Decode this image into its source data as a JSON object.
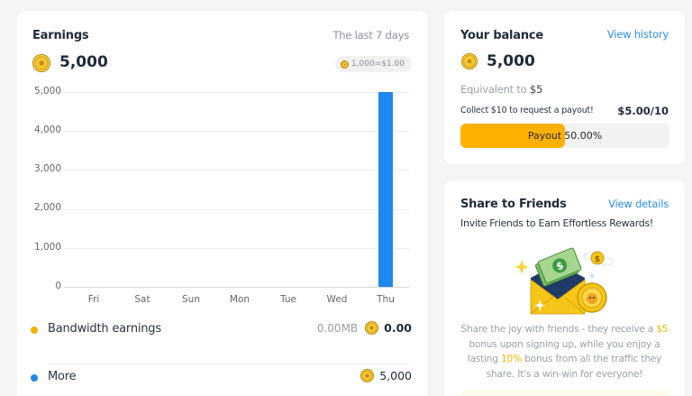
{
  "earnings": {
    "title": "Earnings",
    "period": "The last 7 days",
    "total": "5,000",
    "rate": "1,000=$1.00",
    "legend": [
      {
        "label": "Bandwidth earnings",
        "usage": "0.00MB",
        "value": "0.00",
        "color": "#f5b000"
      },
      {
        "label": "More",
        "usage": "",
        "value": "5,000",
        "color": "#1e88f0"
      }
    ]
  },
  "chart_data": {
    "type": "bar",
    "title": "Earnings",
    "categories": [
      "Fri",
      "Sat",
      "Sun",
      "Mon",
      "Tue",
      "Wed",
      "Thu"
    ],
    "values": [
      0,
      0,
      0,
      0,
      0,
      0,
      5000
    ],
    "y_ticks": [
      "5,000",
      "4,000",
      "3,000",
      "2,000",
      "1,000",
      "0"
    ],
    "ylim": [
      0,
      5000
    ],
    "xlabel": "",
    "ylabel": "",
    "grid": true,
    "bar_color": "#1e88f0"
  },
  "balance": {
    "title": "Your balance",
    "history_link": "View history",
    "total": "5,000",
    "equiv_prefix": "Equivalent to",
    "equiv_value": "$5",
    "collect_text": "Collect $10 to request a payout!",
    "progress_ratio": "$5.00/10",
    "progress_label": "Payout",
    "progress_percent": "50.00%",
    "progress_value": 50
  },
  "share": {
    "title": "Share to Friends",
    "details_link": "View details",
    "subtitle": "Invite Friends to Earn Effortless Rewards!",
    "desc_1": "Share the joy with friends - they receive a",
    "desc_hl1": "$5",
    "desc_2": "bonus upon signing up, while you enjoy a lasting",
    "desc_hl2": "10%",
    "desc_3": "bonus from all the traffic they share. It's a win-win for everyone!"
  }
}
